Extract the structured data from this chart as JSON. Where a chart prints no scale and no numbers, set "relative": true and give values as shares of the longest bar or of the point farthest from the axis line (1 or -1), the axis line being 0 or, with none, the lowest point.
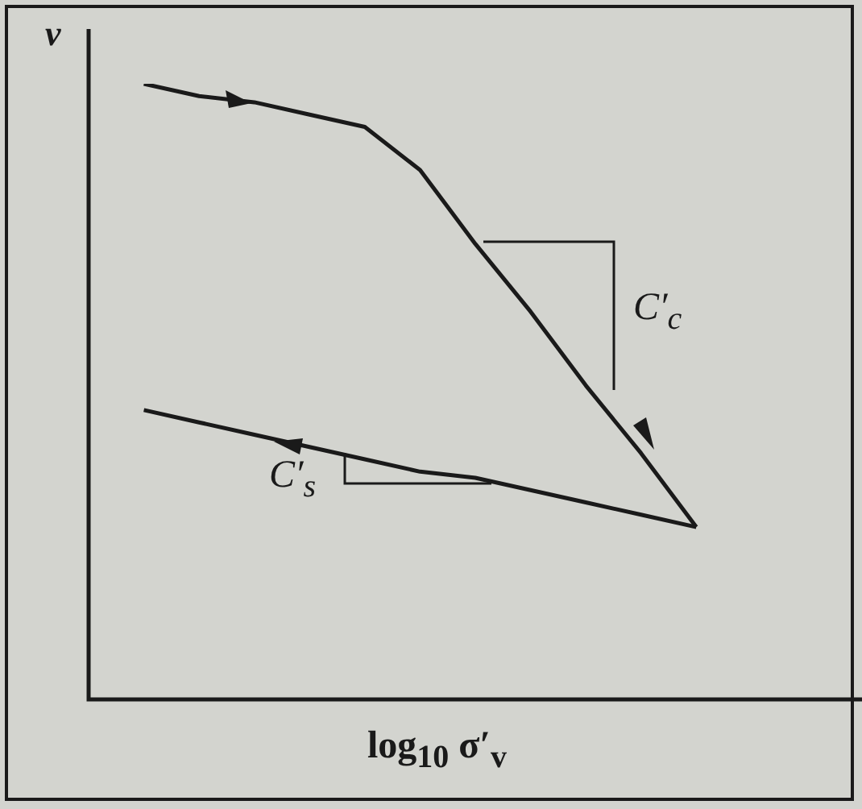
{
  "chart_data": {
    "type": "line",
    "relative": true,
    "xlabel": "log$_{10}$ σ′$_{v}$",
    "ylabel": "v",
    "marker": "none",
    "line_style": "solid",
    "legend": false,
    "categories": [
      null,
      null,
      null,
      null,
      null,
      null,
      null,
      null,
      null,
      null,
      null,
      null,
      null,
      null,
      null
    ],
    "series": [
      {
        "color": "#1a1a1a",
        "values": [
          null,
          1,
          0.98,
          0.97,
          0.95,
          0.93,
          0.86,
          0.74,
          0.63,
          0.51,
          0.4,
          0.28,
          null,
          null,
          null
        ]
      },
      {
        "color": "#1a1a1a",
        "values": [
          null,
          0.47,
          0.45,
          0.43,
          0.41,
          0.39,
          0.37,
          0.36,
          0.34,
          0.32,
          0.3,
          0.28,
          null,
          null,
          null
        ]
      }
    ],
    "annotations": [
      "C′$_{c}$",
      "C′$_{s}$"
    ]
  }
}
